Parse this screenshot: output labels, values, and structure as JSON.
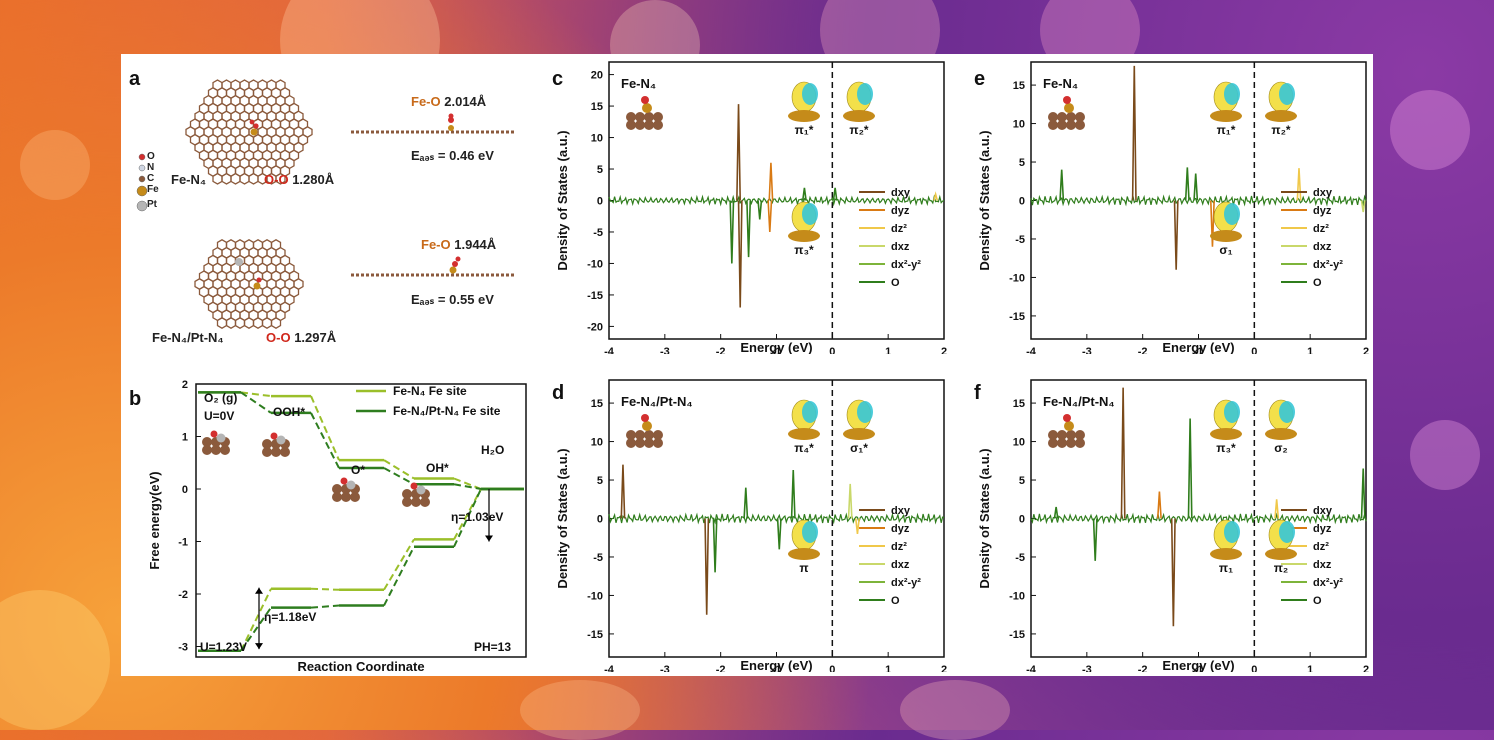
{
  "panel_labels": [
    "a",
    "b",
    "c",
    "d",
    "e",
    "f"
  ],
  "panel_a": {
    "legend": [
      "O",
      "N",
      "C",
      "Fe",
      "Pt"
    ],
    "legend_colors": [
      "#d32f2f",
      "#cfd6e3",
      "#8b5a3c",
      "#c58b1a",
      "#b5b5b5"
    ],
    "top": {
      "name": "Fe-N₄",
      "oo_label": "O-O",
      "oo_value": "1.280Å",
      "feo_label": "Fe-O",
      "feo_value": "2.014Å",
      "eads": "Eₐₔₛ = 0.46 eV"
    },
    "bottom": {
      "name": "Fe-N₄/Pt-N₄",
      "oo_label": "O-O",
      "oo_value": "1.297Å",
      "feo_label": "Fe-O",
      "feo_value": "1.944Å",
      "eads": "Eₐₔₛ = 0.55 eV"
    }
  },
  "chart_data": [
    {
      "panel": "b",
      "type": "line",
      "title": "",
      "xlabel": "Reaction Coordinate",
      "ylabel": "Free energy(eV)",
      "ylim": [
        -3.2,
        2
      ],
      "yticks": [
        2,
        1,
        0,
        -1,
        -2,
        -3
      ],
      "steps": [
        "O2 (g)",
        "OOH*",
        "O*",
        "OH*",
        "H2O"
      ],
      "series": [
        {
          "name": "Fe-N₄ Fe site",
          "color": "#9bbf2a",
          "u0": [
            1.84,
            1.77,
            0.55,
            0.2,
            0
          ],
          "u123": [
            -3.08,
            -1.9,
            -1.92,
            -0.96,
            0
          ]
        },
        {
          "name": "Fe-N₄/Pt-N₄ Fe site",
          "color": "#2e7d1f",
          "u0": [
            1.84,
            1.45,
            0.4,
            0.09,
            0
          ],
          "u123": [
            -3.08,
            -2.26,
            -2.22,
            -1.1,
            0
          ]
        }
      ],
      "annotations": {
        "o2": "O₂ (g)",
        "u0": "U=0V",
        "ooh": "OOH*",
        "o": "O*",
        "oh": "OH*",
        "h2o": "H₂O",
        "eta1": "η=1.03eV",
        "eta2": "η=1.18eV",
        "u123": "U=1.23V",
        "ph": "PH=13"
      }
    },
    {
      "panel": "c",
      "type": "line",
      "title": "Fe-N₄",
      "xlabel": "Energy (eV)",
      "ylabel": "Density of States (a.u.)",
      "xlim": [
        -4,
        2
      ],
      "ylim": [
        -22,
        22
      ],
      "xticks": [
        -4,
        -3,
        -2,
        -1,
        0,
        1,
        2
      ],
      "yticks": [
        20,
        15,
        10,
        5,
        0,
        -5,
        -10,
        -15,
        -20
      ],
      "legend": [
        "dxy",
        "dyz",
        "dz²",
        "dxz",
        "dx²-y²",
        "O"
      ],
      "peaks": [
        {
          "s": 0,
          "x": -1.68,
          "v": 15.3
        },
        {
          "s": 0,
          "x": -1.65,
          "v": -17
        },
        {
          "s": 1,
          "x": -1.1,
          "v": 6
        },
        {
          "s": 1,
          "x": -1.12,
          "v": -5
        },
        {
          "s": 5,
          "x": -1.8,
          "v": -10
        },
        {
          "s": 5,
          "x": -1.5,
          "v": -9
        },
        {
          "s": 5,
          "x": -1.3,
          "v": -3
        },
        {
          "s": 5,
          "x": -0.5,
          "v": 2
        },
        {
          "s": 5,
          "x": 0.05,
          "v": 2
        },
        {
          "s": 2,
          "x": 1.85,
          "v": 1
        }
      ],
      "labels": [
        "π₁*",
        "π₂*",
        "π₃*"
      ]
    },
    {
      "panel": "d",
      "type": "line",
      "title": "Fe-N₄/Pt-N₄",
      "xlabel": "Energy (eV)",
      "ylabel": "Density of States (a.u.)",
      "xlim": [
        -4,
        2
      ],
      "ylim": [
        -18,
        18
      ],
      "xticks": [
        -4,
        -3,
        -2,
        -1,
        0,
        1,
        2
      ],
      "yticks": [
        15,
        10,
        5,
        0,
        -5,
        -10,
        -15
      ],
      "legend": [
        "dxy",
        "dyz",
        "dz²",
        "dxz",
        "dx²-y²",
        "O"
      ],
      "peaks": [
        {
          "s": 0,
          "x": -3.75,
          "v": 7
        },
        {
          "s": 0,
          "x": -2.25,
          "v": -12.5
        },
        {
          "s": 5,
          "x": -2.1,
          "v": -7
        },
        {
          "s": 5,
          "x": -1.55,
          "v": 4
        },
        {
          "s": 5,
          "x": -0.95,
          "v": -4
        },
        {
          "s": 5,
          "x": -0.7,
          "v": 6.3
        },
        {
          "s": 3,
          "x": 0.32,
          "v": 4.5
        },
        {
          "s": 2,
          "x": 0.45,
          "v": -2
        }
      ],
      "labels": [
        "π₄*",
        "σ₁*",
        "π"
      ]
    },
    {
      "panel": "e",
      "type": "line",
      "title": "Fe-N₄",
      "xlabel": "Energy (eV)",
      "ylabel": "Density of States (a.u.)",
      "xlim": [
        -4,
        2
      ],
      "ylim": [
        -18,
        18
      ],
      "xticks": [
        -4,
        -3,
        -2,
        -1,
        0,
        1,
        2
      ],
      "yticks": [
        15,
        10,
        5,
        0,
        -5,
        -10,
        -15
      ],
      "legend": [
        "dxy",
        "dyz",
        "dz²",
        "dxz",
        "dx²-y²",
        "O"
      ],
      "peaks": [
        {
          "s": 0,
          "x": -2.15,
          "v": 17.5
        },
        {
          "s": 0,
          "x": -1.4,
          "v": -9
        },
        {
          "s": 1,
          "x": -0.75,
          "v": -6
        },
        {
          "s": 5,
          "x": -3.45,
          "v": 4
        },
        {
          "s": 5,
          "x": -1.2,
          "v": 4.3
        },
        {
          "s": 5,
          "x": -1.05,
          "v": 3.5
        },
        {
          "s": 2,
          "x": 0.8,
          "v": 4.2
        },
        {
          "s": 3,
          "x": 1.95,
          "v": -1.5
        }
      ],
      "labels": [
        "π₁*",
        "π₂*",
        "σ₁"
      ]
    },
    {
      "panel": "f",
      "type": "line",
      "title": "Fe-N₄/Pt-N₄",
      "xlabel": "Energy (eV)",
      "ylabel": "Density of States (a.u.)",
      "xlim": [
        -4,
        2
      ],
      "ylim": [
        -18,
        18
      ],
      "xticks": [
        -4,
        -3,
        -2,
        -1,
        0,
        1,
        2
      ],
      "yticks": [
        15,
        10,
        5,
        0,
        -5,
        -10,
        -15
      ],
      "legend": [
        "dxy",
        "dyz",
        "dz²",
        "dxz",
        "dx²-y²",
        "O"
      ],
      "peaks": [
        {
          "s": 0,
          "x": -2.35,
          "v": 17
        },
        {
          "s": 0,
          "x": -1.45,
          "v": -14
        },
        {
          "s": 1,
          "x": -1.7,
          "v": 3.5
        },
        {
          "s": 5,
          "x": -2.85,
          "v": -5.5
        },
        {
          "s": 5,
          "x": -1.15,
          "v": 13
        },
        {
          "s": 5,
          "x": -3.55,
          "v": 1.5
        },
        {
          "s": 2,
          "x": 0.4,
          "v": 2.5
        },
        {
          "s": 5,
          "x": 1.95,
          "v": 6.5
        }
      ],
      "labels": [
        "π₃*",
        "σ₂",
        "π₁",
        "π₂"
      ]
    }
  ],
  "colors": {
    "dxy": "#7a4a1a",
    "dyz": "#d97a14",
    "dz2": "#f0c84a",
    "dxz": "#c9d86a",
    "dx2y2": "#7db43a",
    "O": "#2f7d1c",
    "fe_n4": "#9bbf2a",
    "fe_pt": "#2e7d1f",
    "iso_yellow": "#f3e04a",
    "iso_cyan": "#37c6d6"
  }
}
